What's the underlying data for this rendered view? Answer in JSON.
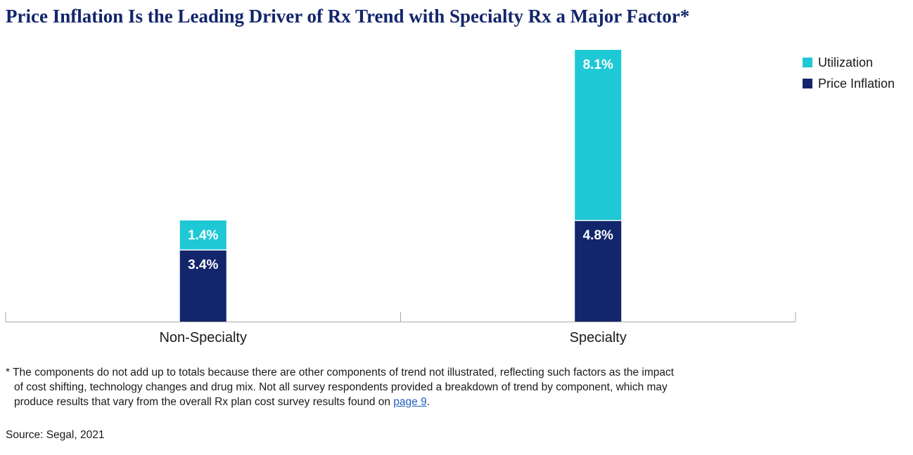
{
  "title": "Price Inflation Is the Leading Driver of Rx Trend with Specialty Rx a Major Factor*",
  "colors": {
    "utilization": "#1ec8d4",
    "price_inflation": "#13256b",
    "title": "#13256b",
    "axis": "#aaaaaa"
  },
  "legend": [
    {
      "label": "Utilization",
      "color_key": "utilization"
    },
    {
      "label": "Price Inflation",
      "color_key": "price_inflation"
    }
  ],
  "chart_data": {
    "type": "bar",
    "stacked": true,
    "categories": [
      "Non-Specialty",
      "Specialty"
    ],
    "series": [
      {
        "name": "Price Inflation",
        "values": [
          3.4,
          4.8
        ],
        "labels": [
          "3.4%",
          "4.8%"
        ]
      },
      {
        "name": "Utilization",
        "values": [
          1.4,
          8.1
        ],
        "labels": [
          "1.4%",
          "8.1%"
        ]
      }
    ],
    "title": "Price Inflation Is the Leading Driver of Rx Trend with Specialty Rx a Major Factor*",
    "xlabel": "",
    "ylabel": "",
    "ylim": [
      0,
      12.9
    ],
    "grid": false,
    "legend_position": "top-right"
  },
  "footnote": {
    "text_line1": "* The components do not add up to totals because there are other components of trend not illustrated, reflecting such factors as the impact",
    "text_line2": "of cost shifting, technology changes and drug mix. Not all survey respondents provided a breakdown of trend by component, which may",
    "text_line3": "produce results that vary from the overall Rx plan cost survey results found on ",
    "link_text": "page 9",
    "text_end": "."
  },
  "source": "Source: Segal, 2021"
}
